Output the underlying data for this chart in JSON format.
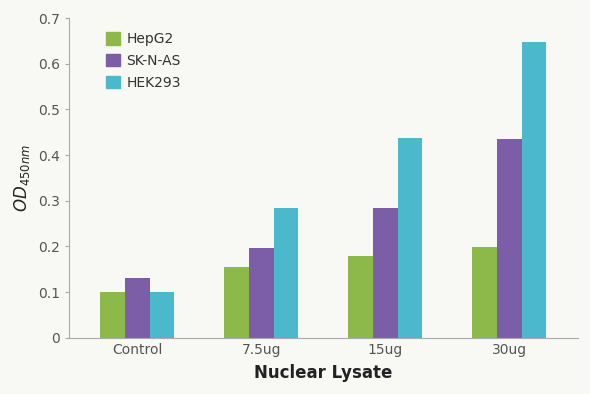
{
  "categories": [
    "Control",
    "7.5ug",
    "15ug",
    "30ug"
  ],
  "series": {
    "HepG2": [
      0.1,
      0.155,
      0.178,
      0.198
    ],
    "SK-N-AS": [
      0.13,
      0.196,
      0.285,
      0.435
    ],
    "HEK293": [
      0.1,
      0.285,
      0.438,
      0.648
    ]
  },
  "colors": {
    "HepG2": "#8db84a",
    "SK-N-AS": "#7b5ea7",
    "HEK293": "#4bb8cb"
  },
  "ylabel": "OD$_{450nm}$",
  "xlabel": "Nuclear Lysate",
  "ylim": [
    0,
    0.7
  ],
  "yticks": [
    0,
    0.1,
    0.2,
    0.3,
    0.4,
    0.5,
    0.6,
    0.7
  ],
  "legend_order": [
    "HepG2",
    "SK-N-AS",
    "HEK293"
  ],
  "bar_width": 0.2,
  "background_color": "#f8f8f5",
  "plot_area_color": "#f8f8f5",
  "spine_color": "#aaaaaa",
  "tick_color": "#555555",
  "axis_label_fontsize": 12,
  "tick_fontsize": 10,
  "legend_fontsize": 10
}
